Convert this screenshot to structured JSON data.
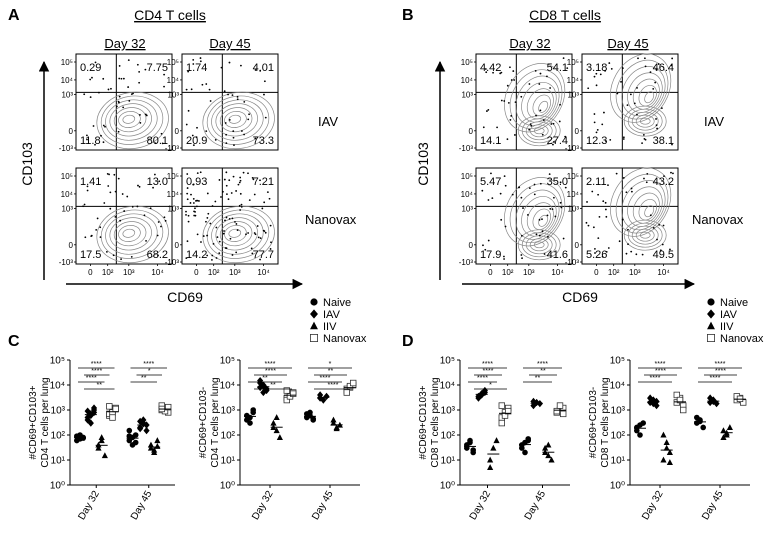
{
  "panel_A": {
    "letter": "A",
    "title": "CD4 T cells",
    "col_labels": [
      "Day 32",
      "Day 45"
    ],
    "row_labels": [
      "IAV",
      "Nanovax"
    ],
    "y_label": "CD103",
    "x_label": "CD69",
    "y_ticks": [
      "10⁵",
      "10⁴",
      "10³",
      "0",
      "-10³"
    ],
    "x_ticks": [
      "0",
      "10²",
      "10³",
      "10⁴"
    ],
    "plots": [
      {
        "day": "Day 32",
        "group": "IAV",
        "ul": "0.29",
        "ur": "7.75",
        "ll": "11.8",
        "lr": "80.1"
      },
      {
        "day": "Day 45",
        "group": "IAV",
        "ul": "1.74",
        "ur": "4.01",
        "ll": "20.9",
        "lr": "73.3"
      },
      {
        "day": "Day 32",
        "group": "Nanovax",
        "ul": "1.41",
        "ur": "13.0",
        "ll": "17.5",
        "lr": "68.2"
      },
      {
        "day": "Day 45",
        "group": "Nanovax",
        "ul": "0.93",
        "ur": "7.21",
        "ll": "14.2",
        "lr": "77.7"
      }
    ]
  },
  "panel_B": {
    "letter": "B",
    "title": "CD8 T cells",
    "col_labels": [
      "Day 32",
      "Day 45"
    ],
    "row_labels": [
      "IAV",
      "Nanovax"
    ],
    "y_label": "CD103",
    "x_label": "CD69",
    "y_ticks": [
      "10⁵",
      "10⁴",
      "10³",
      "0",
      "-10³"
    ],
    "x_ticks": [
      "0",
      "10²",
      "10³",
      "10⁴"
    ],
    "plots": [
      {
        "day": "Day 32",
        "group": "IAV",
        "ul": "4.42",
        "ur": "54.1",
        "ll": "14.1",
        "lr": "27.4"
      },
      {
        "day": "Day 45",
        "group": "IAV",
        "ul": "3.18",
        "ur": "46.4",
        "ll": "12.3",
        "lr": "38.1"
      },
      {
        "day": "Day 32",
        "group": "Nanovax",
        "ul": "5.47",
        "ur": "35.0",
        "ll": "17.9",
        "lr": "41.6"
      },
      {
        "day": "Day 45",
        "group": "Nanovax",
        "ul": "2.11",
        "ur": "43.2",
        "ll": "5.26",
        "lr": "49.5"
      }
    ]
  },
  "legend": {
    "entries": [
      "Naive",
      "IAV",
      "IIV",
      "Nanovax"
    ],
    "symbols": [
      "circle",
      "diamond",
      "triangle",
      "open-square"
    ]
  },
  "chart_data": [
    {
      "panel": "C",
      "type": "scatter",
      "ylabel_lines": [
        "#CD69+CD103+",
        "CD4 T cells per lung"
      ],
      "categories": [
        "Day 32",
        "Day 45"
      ],
      "yscale": "log",
      "ylim": [
        1,
        100000
      ],
      "y_tick_labels": [
        "10⁰",
        "10¹",
        "10²",
        "10³",
        "10⁴",
        "10⁵"
      ],
      "series": [
        {
          "name": "Naive",
          "values": [
            [
              60,
              70,
              80,
              90,
              100,
              75
            ],
            [
              60,
              40,
              100,
              150,
              80,
              50,
              90
            ]
          ]
        },
        {
          "name": "IAV",
          "values": [
            [
              500,
              700,
              1000,
              400,
              600,
              800,
              900,
              300,
              1200
            ],
            [
              200,
              300,
              250,
              350,
              400,
              150,
              180,
              280
            ]
          ]
        },
        {
          "name": "IIV",
          "values": [
            [
              30,
              80,
              15,
              40,
              60
            ],
            [
              40,
              20,
              60,
              30,
              25,
              35
            ]
          ]
        },
        {
          "name": "Nanovax",
          "values": [
            [
              600,
              900,
              1200,
              700,
              800,
              1100,
              1400,
              500
            ],
            [
              1000,
              1200,
              800,
              1500,
              900,
              1300,
              1100
            ]
          ]
        }
      ],
      "sig_rows": [
        "****",
        "****",
        "****",
        "**",
        "****",
        "*",
        "**"
      ]
    },
    {
      "panel": "C2",
      "type": "scatter",
      "ylabel_lines": [
        "#CD69+CD103-",
        "CD4 T cells per lung"
      ],
      "categories": [
        "Day 32",
        "Day 45"
      ],
      "yscale": "log",
      "ylim": [
        1,
        100000
      ],
      "y_tick_labels": [
        "10⁰",
        "10¹",
        "10²",
        "10³",
        "10⁴",
        "10⁵"
      ],
      "series": [
        {
          "name": "Naive",
          "values": [
            [
              600,
              300,
              800,
              400,
              500,
              1000
            ],
            [
              500,
              600,
              400,
              700,
              800,
              450
            ]
          ]
        },
        {
          "name": "IAV",
          "values": [
            [
              8000,
              10000,
              6000,
              12000,
              9000,
              7000,
              15000,
              5000
            ],
            [
              3000,
              2500,
              3500,
              4000
            ]
          ]
        },
        {
          "name": "IIV",
          "values": [
            [
              200,
              500,
              80,
              300,
              150
            ],
            [
              300,
              200,
              250,
              400,
              180
            ]
          ]
        },
        {
          "name": "Nanovax",
          "values": [
            [
              3000,
              4000,
              5000,
              2500,
              3500,
              4500,
              6000
            ],
            [
              6000,
              8000,
              10000,
              7000,
              9000,
              12000,
              5000
            ]
          ]
        }
      ],
      "sig_rows": [
        "****",
        "****",
        "**",
        "**",
        "*",
        "**",
        "****",
        "****"
      ]
    },
    {
      "panel": "D",
      "type": "scatter",
      "ylabel_lines": [
        "#CD69+CD103+",
        "CD8 T cells per lung"
      ],
      "categories": [
        "Day 32",
        "Day 45"
      ],
      "yscale": "log",
      "ylim": [
        1,
        100000
      ],
      "y_tick_labels": [
        "10⁰",
        "10¹",
        "10²",
        "10³",
        "10⁴",
        "10⁵"
      ],
      "series": [
        {
          "name": "Naive",
          "values": [
            [
              30,
              50,
              20,
              40,
              60,
              25
            ],
            [
              30,
              50,
              70,
              40,
              20,
              60
            ]
          ]
        },
        {
          "name": "IAV",
          "values": [
            [
              3000,
              4000,
              5000,
              3500,
              4500,
              6000
            ],
            [
              1500,
              2000,
              1800,
              2200
            ]
          ]
        },
        {
          "name": "IIV",
          "values": [
            [
              10,
              30,
              60,
              5
            ],
            [
              20,
              40,
              10,
              30,
              15
            ]
          ]
        },
        {
          "name": "Nanovax",
          "values": [
            [
              500,
              800,
              1200,
              300,
              600,
              900,
              1500
            ],
            [
              800,
              1000,
              1200,
              900,
              1500,
              700
            ]
          ]
        }
      ],
      "sig_rows": [
        "****",
        "****",
        "****",
        "*",
        "****",
        "**",
        "**"
      ]
    },
    {
      "panel": "D2",
      "type": "scatter",
      "ylabel_lines": [
        "#CD69+CD103-",
        "CD8 T cells per lung"
      ],
      "categories": [
        "Day 32",
        "Day 45"
      ],
      "yscale": "log",
      "ylim": [
        1,
        100000
      ],
      "y_tick_labels": [
        "10⁰",
        "10¹",
        "10²",
        "10³",
        "10⁴",
        "10⁵"
      ],
      "series": [
        {
          "name": "Naive",
          "values": [
            [
              200,
              100,
              300,
              150,
              250
            ],
            [
              300,
              400,
              200,
              500,
              350
            ]
          ]
        },
        {
          "name": "IAV",
          "values": [
            [
              2000,
              2500,
              1500,
              3000,
              1800,
              2200
            ],
            [
              2000,
              2500,
              1800,
              3000,
              2200
            ]
          ]
        },
        {
          "name": "IIV",
          "values": [
            [
              100,
              50,
              20,
              10,
              30,
              8
            ],
            [
              150,
              100,
              200,
              80,
              120
            ]
          ]
        },
        {
          "name": "Nanovax",
          "values": [
            [
              2000,
              3000,
              1500,
              4000,
              2500,
              1000
            ],
            [
              2500,
              3000,
              2000,
              3500,
              2800
            ]
          ]
        }
      ],
      "sig_rows": [
        "****",
        "****",
        "****",
        "****",
        "****",
        "****"
      ]
    }
  ],
  "bottom_letters": [
    "C",
    "D"
  ]
}
